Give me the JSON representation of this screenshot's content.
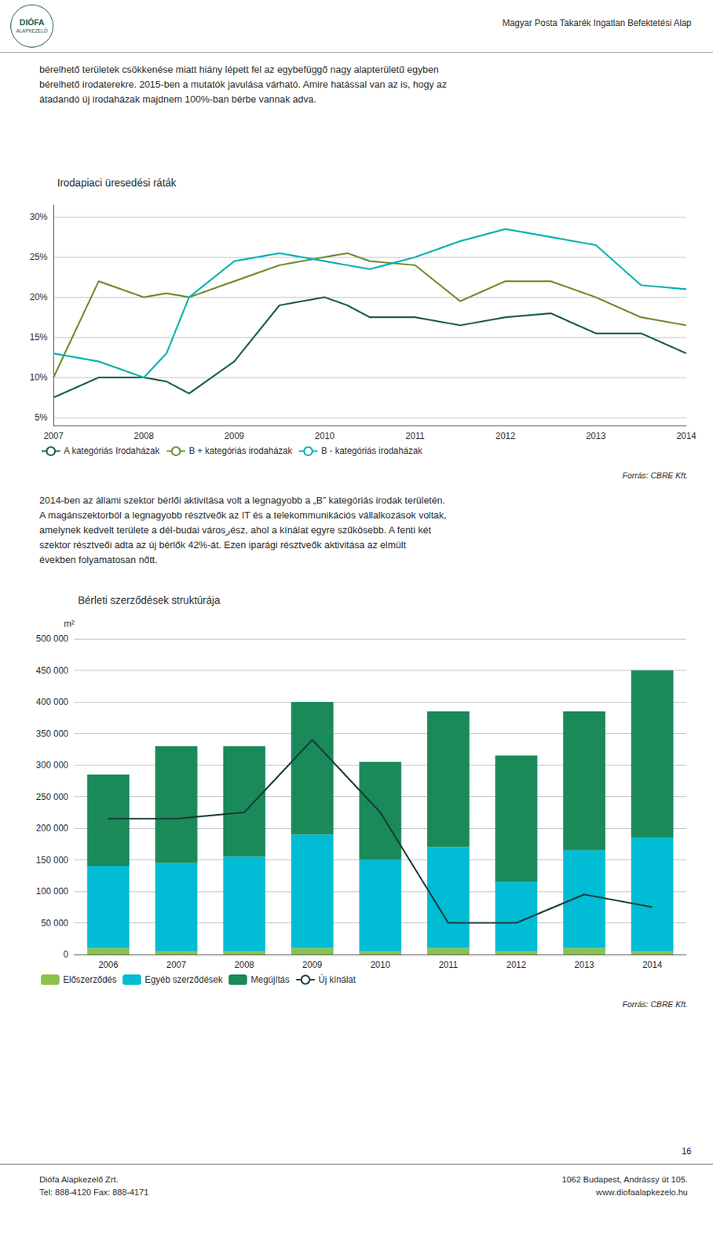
{
  "header": "Magyar Posta Takarék Ingatlan Befektetési Alap",
  "logo": [
    "DIÓFA",
    "ALAPKEZELŐ"
  ],
  "paragraphs": [
    [
      "bérelhető területek csökkenése miatt hiány lépett fel az egybefüggő nagy alapterületű egyben",
      "bérelhető irodaterekre. 2015-ben a mutatók javulása várható. Amire hatással van az is, hogy az",
      "átadandó új irodaházak majdnem 100%-ban bérbe vannak adva."
    ],
    [
      "2014-ben az állami szektor bérlői aktivitása volt a legnagyobb a „B” kategóriás irodak területén.",
      "A magánszektorból a legnagyobb résztveők az IT és a telekommunikációs vállalkozások voltak,",
      "amelynek kedvelt területe a dél-budai városرész, ahol a kínálat egyre szűkösebb. A fenti két",
      "szektor résztveői adta az új bérlők 42%-át. Ezen iparági résztveők aktivitása az elmúlt",
      "években folyamatosan nőtt."
    ]
  ],
  "footer": [
    [
      "Diófa Alapkezelő Zrt.",
      "Tel: 888-4120   Fax: 888-4171"
    ],
    [
      "1062 Budapest, Andrássy út 105.",
      "www.diofaalapkezelo.hu"
    ]
  ],
  "page_number": "16",
  "chart_data": [
    {
      "type": "line",
      "title": "Irodapiaci üresedési ráták",
      "x": [
        2007,
        2007.5,
        2008,
        2008.25,
        2008.5,
        2009,
        2009.5,
        2010,
        2010.25,
        2010.5,
        2011,
        2011.5,
        2012,
        2012.5,
        2013,
        2013.5,
        2014
      ],
      "series": [
        {
          "name": "A kategóriás Irodaházak",
          "color": "#1a5c4a",
          "values": [
            0.075,
            0.1,
            0.1,
            0.095,
            0.08,
            0.12,
            0.19,
            0.2,
            0.19,
            0.175,
            0.175,
            0.165,
            0.175,
            0.18,
            0.155,
            0.155,
            0.13
          ]
        },
        {
          "name": "B + kategóriás irodaházak",
          "color": "#6b8c2a",
          "values": [
            0.1,
            0.22,
            0.2,
            0.205,
            0.2,
            0.22,
            0.24,
            0.25,
            0.255,
            0.245,
            0.24,
            0.195,
            0.22,
            0.22,
            0.2,
            0.175,
            0.165
          ]
        },
        {
          "name": "B - kategóriás irodaházak",
          "color": "#00b0b0",
          "values": [
            0.13,
            0.12,
            0.1,
            0.13,
            0.2,
            0.245,
            0.255,
            0.245,
            0.24,
            0.235,
            0.25,
            0.27,
            0.285,
            0.275,
            0.265,
            0.215,
            0.21
          ]
        }
      ],
      "xlim": [
        2007,
        2014
      ],
      "xticks": [
        2007,
        2008,
        2009,
        2010,
        2011,
        2012,
        2013,
        2014
      ],
      "ylim": [
        0.04,
        0.315
      ],
      "yticks": [
        {
          "value": 0.05,
          "label": "5%"
        },
        {
          "value": 0.1,
          "label": "10%"
        },
        {
          "value": 0.15,
          "label": "15%"
        },
        {
          "value": 0.2,
          "label": "20%"
        },
        {
          "value": 0.25,
          "label": "25%"
        },
        {
          "value": 0.3,
          "label": "30%"
        }
      ],
      "grid": true,
      "legend": "bottom",
      "annotations": [
        "Forrás: CBRE Kft."
      ]
    },
    {
      "type": "bar",
      "title": "Bérleti szerződések struktúrája",
      "ylabel": "m²",
      "categories": [
        2006,
        2007,
        2008,
        2009,
        2010,
        2011,
        2012,
        2013,
        2014
      ],
      "stacked": true,
      "series": [
        {
          "name": "Előszerződés",
          "type": "bar",
          "color": "#8bc34a",
          "values": [
            10000,
            5000,
            5000,
            10000,
            5000,
            10000,
            5000,
            10000,
            5000
          ]
        },
        {
          "name": "Egyéb szerződések",
          "type": "bar",
          "color": "#00bcd4",
          "values": [
            130000,
            140000,
            150000,
            180000,
            145000,
            160000,
            110000,
            155000,
            180000
          ]
        },
        {
          "name": "Megújítás",
          "type": "bar",
          "color": "#1a8a5a",
          "values": [
            145000,
            185000,
            175000,
            210000,
            155000,
            215000,
            200000,
            220000,
            265000
          ]
        },
        {
          "name": "Új kínálat",
          "type": "line",
          "color": "#1a3a3a",
          "values": [
            215000,
            215000,
            225000,
            340000,
            225000,
            50000,
            50000,
            95000,
            75000
          ]
        }
      ],
      "ylim": [
        0,
        500000
      ],
      "yticks": [
        0,
        {
          "value": 50000,
          "label": "50 000"
        },
        {
          "value": 100000,
          "label": "100 000"
        },
        {
          "value": 150000,
          "label": "150 000"
        },
        {
          "value": 200000,
          "label": "200 000"
        },
        {
          "value": 250000,
          "label": "250 000"
        },
        {
          "value": 300000,
          "label": "300 000"
        },
        {
          "value": 350000,
          "label": "350 000"
        },
        {
          "value": 400000,
          "label": "400 000"
        },
        {
          "value": 450000,
          "label": "450 000"
        },
        {
          "value": 500000,
          "label": "500 000"
        }
      ],
      "grid": true,
      "legend": "bottom",
      "annotations": [
        "Forrás: CBRE Kft."
      ]
    }
  ]
}
